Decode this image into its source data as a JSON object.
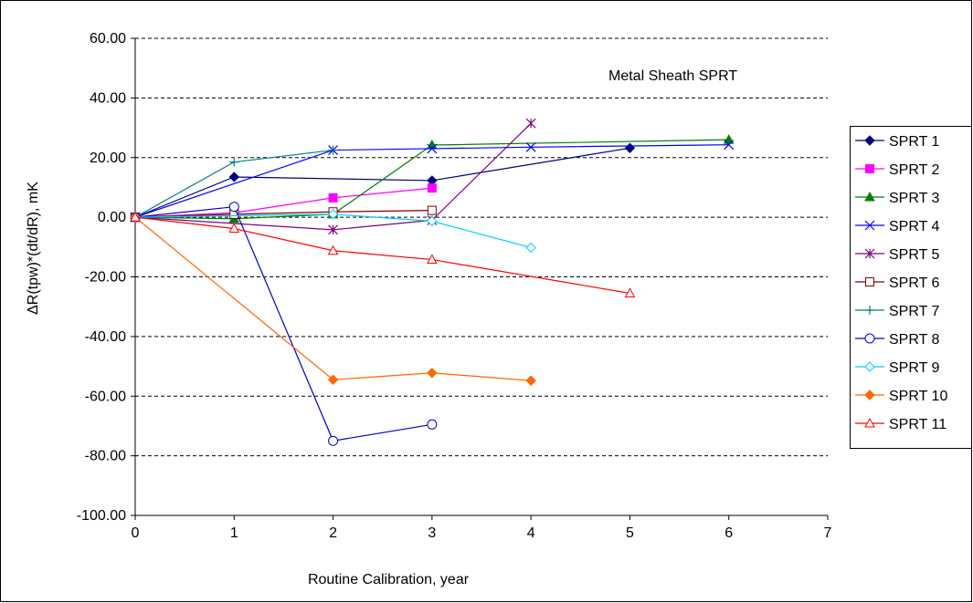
{
  "chart_data": {
    "type": "line",
    "title": "",
    "annotation": "Metal Sheath SPRT",
    "xlabel": "Routine Calibration, year",
    "ylabel": "ΔR(tpw)*(dt/dR), mK",
    "xlim": [
      0,
      7
    ],
    "ylim": [
      -100,
      60
    ],
    "x_ticks": [
      0,
      1,
      2,
      3,
      4,
      5,
      6,
      7
    ],
    "y_ticks": [
      60,
      40,
      20,
      0,
      -20,
      -40,
      -60,
      -80,
      -100
    ],
    "x_tick_labels": [
      "0",
      "1",
      "2",
      "3",
      "4",
      "5",
      "6",
      "7"
    ],
    "y_tick_labels": [
      "60.00",
      "40.00",
      "20.00",
      "0.00",
      "-20.00",
      "-40.00",
      "-60.00",
      "-80.00",
      "-100.00"
    ],
    "grid": "horizontal dashed",
    "legend_position": "right",
    "series": [
      {
        "name": "SPRT 1",
        "color": "#000080",
        "marker": "diamond-filled",
        "x": [
          0,
          1,
          3,
          5
        ],
        "y": [
          0,
          13.5,
          12.3,
          23.2
        ]
      },
      {
        "name": "SPRT 2",
        "color": "#FF00FF",
        "marker": "square-filled",
        "x": [
          0,
          1,
          2,
          3
        ],
        "y": [
          0,
          1.5,
          6.5,
          9.8
        ]
      },
      {
        "name": "SPRT 3",
        "color": "#008000",
        "marker": "triangle-filled",
        "x": [
          0,
          1,
          2,
          3,
          6
        ],
        "y": [
          0,
          -0.5,
          1.0,
          24.2,
          26.0
        ]
      },
      {
        "name": "SPRT 4",
        "color": "#0000FF",
        "marker": "x",
        "x": [
          0,
          2,
          3,
          4,
          6
        ],
        "y": [
          0,
          22.5,
          23.0,
          23.5,
          24.3
        ]
      },
      {
        "name": "SPRT 5",
        "color": "#800080",
        "marker": "star",
        "x": [
          0,
          2,
          3,
          4
        ],
        "y": [
          0,
          -4.2,
          -1.0,
          31.5
        ]
      },
      {
        "name": "SPRT 6",
        "color": "#800000",
        "marker": "square-open",
        "x": [
          0,
          1,
          2,
          3
        ],
        "y": [
          0,
          1.0,
          1.8,
          2.3
        ]
      },
      {
        "name": "SPRT 7",
        "color": "#008080",
        "marker": "plus",
        "x": [
          0,
          1,
          2
        ],
        "y": [
          0,
          18.5,
          22.5
        ]
      },
      {
        "name": "SPRT 8",
        "color": "#0000CC",
        "marker": "circle-open",
        "x": [
          0,
          1,
          2,
          3
        ],
        "y": [
          0,
          3.5,
          -75.0,
          -69.5
        ]
      },
      {
        "name": "SPRT 9",
        "color": "#00CCFF",
        "marker": "diamond-open",
        "x": [
          0,
          2,
          3,
          4
        ],
        "y": [
          0,
          1.0,
          -1.3,
          -10.2
        ]
      },
      {
        "name": "SPRT 10",
        "color": "#FF6600",
        "marker": "diamond-filled",
        "x": [
          0,
          2,
          3,
          4
        ],
        "y": [
          0,
          -54.5,
          -52.2,
          -54.8
        ]
      },
      {
        "name": "SPRT 11",
        "color": "#FF0000",
        "marker": "triangle-open",
        "x": [
          0,
          1,
          2,
          3,
          5
        ],
        "y": [
          0,
          -3.8,
          -11.2,
          -14.2,
          -25.5
        ]
      }
    ]
  }
}
